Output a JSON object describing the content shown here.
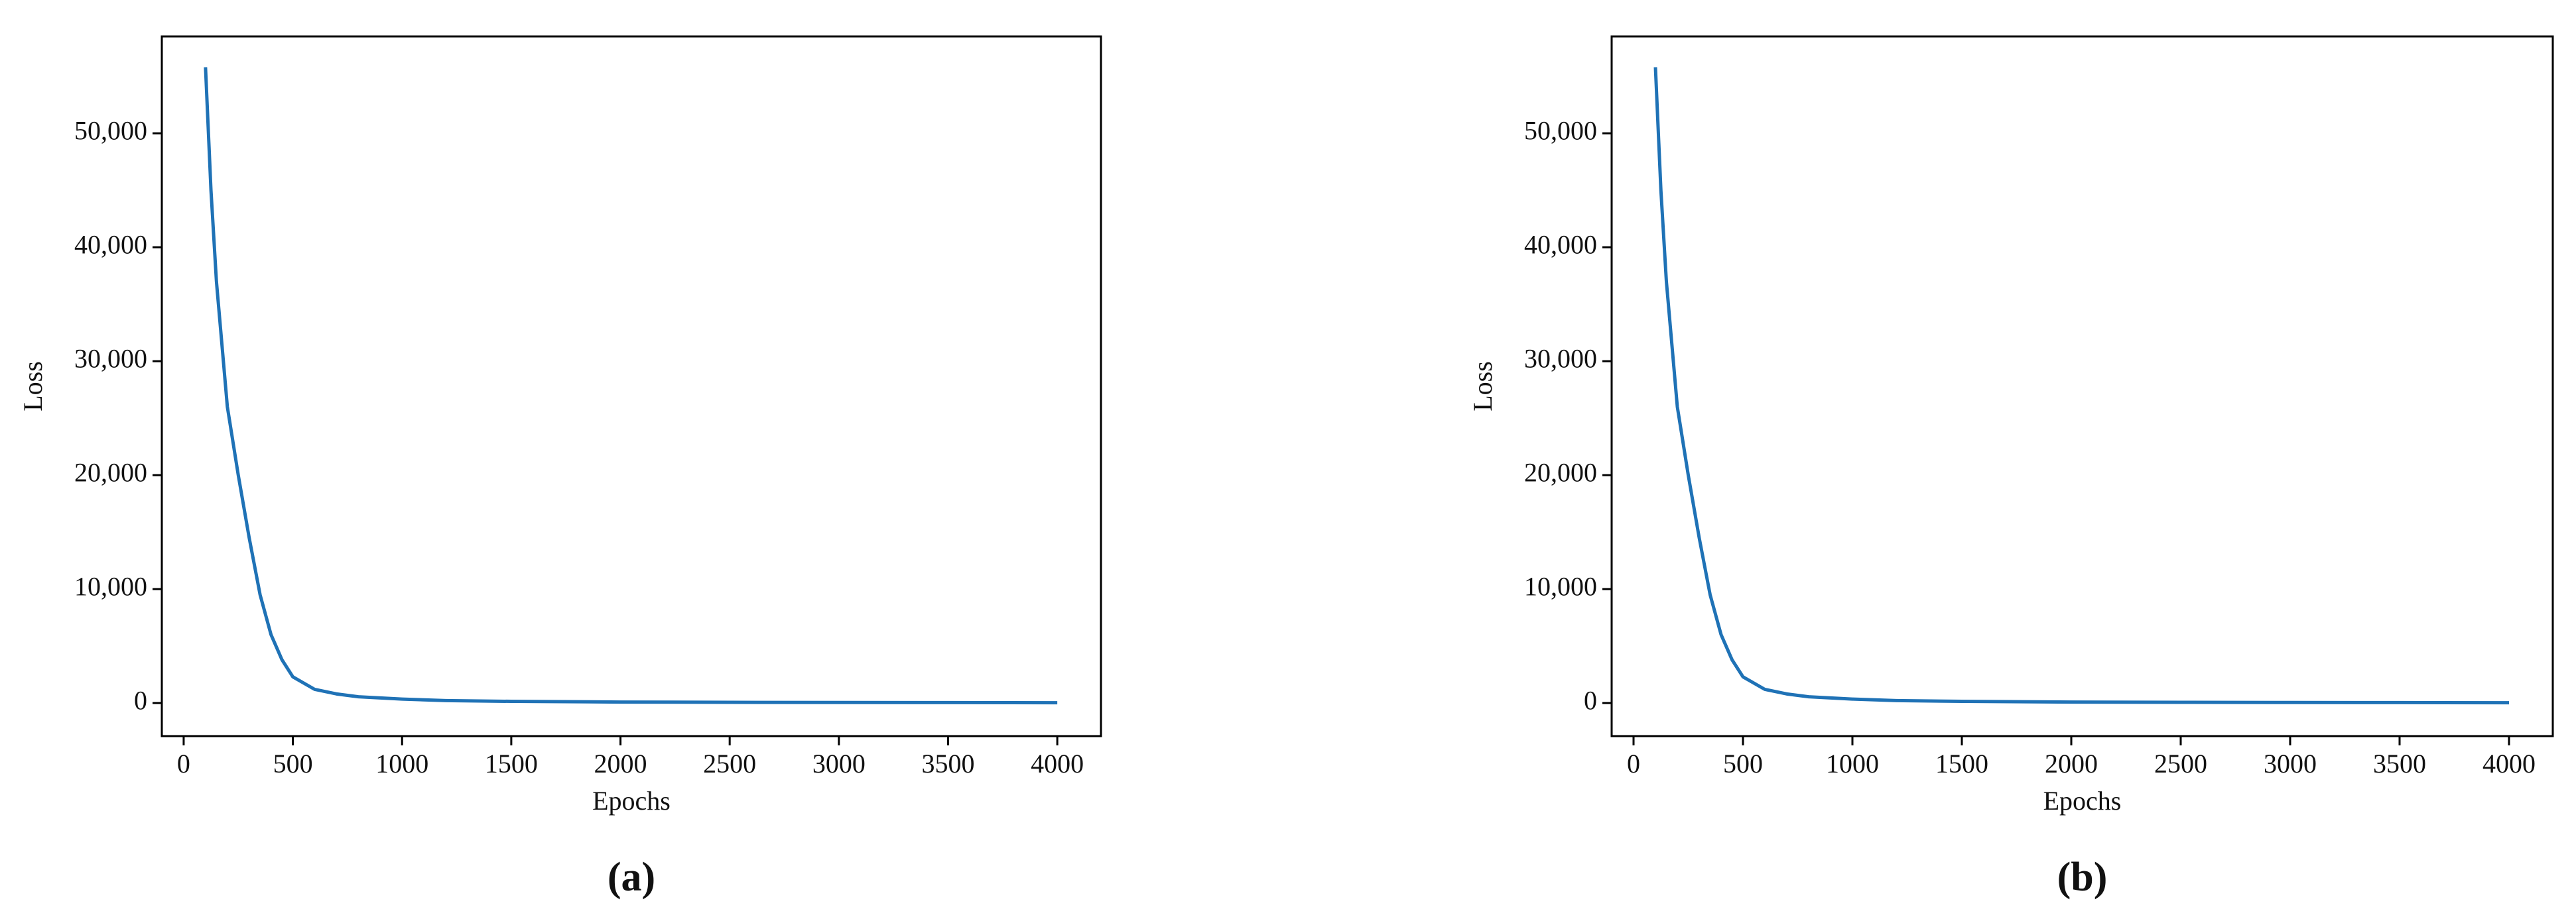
{
  "chart_data": [
    {
      "type": "line",
      "caption": "(a)",
      "x_label": "Epochs",
      "y_label": "Loss",
      "x": [
        100,
        125,
        150,
        200,
        250,
        300,
        350,
        400,
        450,
        500,
        600,
        700,
        800,
        1000,
        1200,
        1500,
        2000,
        2500,
        3000,
        3500,
        4000
      ],
      "series": [
        {
          "name": "Loss",
          "color": "#1f72b6",
          "values": [
            55800,
            45000,
            37000,
            26000,
            20000,
            14500,
            9500,
            6000,
            3800,
            2300,
            1200,
            800,
            550,
            350,
            220,
            150,
            90,
            65,
            50,
            40,
            30
          ]
        }
      ],
      "xlim": [
        -100,
        4200
      ],
      "xticks": [
        0,
        500,
        1000,
        1500,
        2000,
        2500,
        3000,
        3500,
        4000
      ],
      "ylim": [
        -2900,
        58500
      ],
      "yticks": [
        0,
        {
          "value": 10000,
          "label": "10,000"
        },
        {
          "value": 20000,
          "label": "20,000"
        },
        {
          "value": 30000,
          "label": "30,000"
        },
        {
          "value": 40000,
          "label": "40,000"
        },
        {
          "value": 50000,
          "label": "50,000"
        }
      ]
    },
    {
      "type": "line",
      "caption": "(b)",
      "x_label": "Epochs",
      "y_label": "Loss",
      "x": [
        100,
        125,
        150,
        200,
        250,
        300,
        350,
        400,
        450,
        500,
        600,
        700,
        800,
        1000,
        1200,
        1500,
        2000,
        2500,
        3000,
        3500,
        4000
      ],
      "series": [
        {
          "name": "Loss",
          "color": "#1f72b6",
          "values": [
            55800,
            45000,
            37000,
            26000,
            20000,
            14500,
            9500,
            6000,
            3800,
            2300,
            1200,
            800,
            550,
            350,
            220,
            150,
            90,
            65,
            50,
            40,
            30
          ]
        }
      ],
      "xlim": [
        -100,
        4200
      ],
      "xticks": [
        0,
        500,
        1000,
        1500,
        2000,
        2500,
        3000,
        3500,
        4000
      ],
      "ylim": [
        -2900,
        58500
      ],
      "yticks": [
        0,
        {
          "value": 10000,
          "label": "10,000"
        },
        {
          "value": 20000,
          "label": "20,000"
        },
        {
          "value": 30000,
          "label": "30,000"
        },
        {
          "value": 40000,
          "label": "40,000"
        },
        {
          "value": 50000,
          "label": "50,000"
        }
      ]
    }
  ]
}
